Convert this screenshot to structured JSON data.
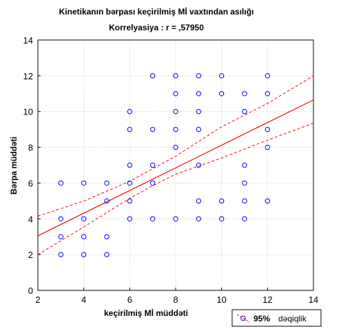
{
  "chart_data": {
    "type": "scatter",
    "title": "Kinetikanın bərpası keçirilmiş Mİ vaxtından asılığı",
    "subtitle": "Korrelyasiya : r = ,57950",
    "xlabel": "keçirilmiş Mİ müddəti",
    "ylabel": "Bərpa müddəti",
    "xlim": [
      2,
      14
    ],
    "ylim": [
      0,
      14
    ],
    "x_ticks": [
      2,
      4,
      6,
      8,
      10,
      12,
      14
    ],
    "y_ticks": [
      0,
      2,
      4,
      6,
      8,
      10,
      12,
      14
    ],
    "grid": true,
    "legend_position": "bottom-right",
    "legend": {
      "value": "95%",
      "label": "dəqiqlik"
    },
    "colors": {
      "points": "#0000ff",
      "fit": "#ff0000",
      "grid": "#c8c8c8"
    },
    "points": {
      "x": [
        3,
        3,
        3,
        3,
        4,
        4,
        4,
        4,
        5,
        5,
        5,
        5,
        6,
        6,
        6,
        6,
        6,
        6,
        7,
        7,
        7,
        7,
        7,
        8,
        8,
        8,
        8,
        8,
        8,
        9,
        9,
        9,
        9,
        9,
        9,
        9,
        10,
        10,
        10,
        10,
        11,
        11,
        11,
        11,
        11,
        11,
        12,
        12,
        12,
        12,
        12
      ],
      "y": [
        2,
        3,
        4,
        6,
        2,
        3,
        4,
        6,
        2,
        3,
        5,
        6,
        4,
        5,
        6,
        7,
        9,
        10,
        4,
        6,
        7,
        9,
        12,
        4,
        8,
        9,
        10,
        11,
        12,
        4,
        5,
        7,
        9,
        10,
        11,
        12,
        4,
        5,
        11,
        12,
        4,
        5,
        6,
        7,
        10,
        11,
        5,
        8,
        9,
        11,
        12
      ]
    },
    "regression": {
      "x": [
        2,
        14
      ],
      "y": [
        3.05,
        10.65
      ]
    },
    "confidence_upper": {
      "x": [
        2,
        4,
        6,
        7,
        8,
        10,
        12,
        14
      ],
      "y": [
        4.15,
        5.0,
        6.1,
        6.8,
        7.5,
        9.15,
        10.45,
        12.0
      ]
    },
    "confidence_lower": {
      "x": [
        2,
        4,
        6,
        7,
        8,
        10,
        12,
        14
      ],
      "y": [
        2.0,
        3.55,
        5.15,
        5.85,
        6.5,
        7.4,
        8.4,
        9.35
      ]
    }
  }
}
